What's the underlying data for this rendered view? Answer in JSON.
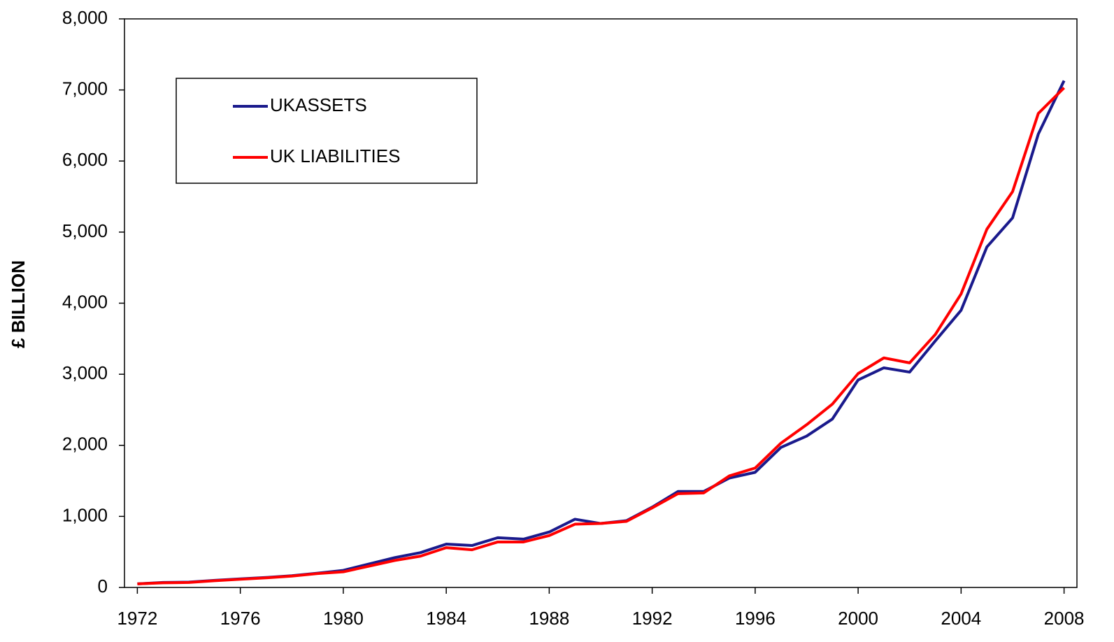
{
  "chart_data": {
    "type": "line",
    "y_label": "£ BILLION",
    "x": [
      1972,
      1973,
      1974,
      1975,
      1976,
      1977,
      1978,
      1979,
      1980,
      1981,
      1982,
      1983,
      1984,
      1985,
      1986,
      1987,
      1988,
      1989,
      1990,
      1991,
      1992,
      1993,
      1994,
      1995,
      1996,
      1997,
      1998,
      1999,
      2000,
      2001,
      2002,
      2003,
      2004,
      2005,
      2006,
      2007,
      2008
    ],
    "series": [
      {
        "name": "UKASSETS",
        "color": "#1a1a8c",
        "values": [
          50,
          70,
          75,
          100,
          120,
          140,
          165,
          200,
          240,
          330,
          420,
          490,
          610,
          590,
          700,
          680,
          780,
          960,
          900,
          940,
          1130,
          1350,
          1350,
          1540,
          1620,
          1970,
          2130,
          2370,
          2920,
          3090,
          3030,
          3470,
          3900,
          4790,
          5200,
          6380,
          7130
        ]
      },
      {
        "name": "UK LIABILITIES",
        "color": "#ff0000",
        "values": [
          50,
          65,
          70,
          95,
          115,
          135,
          160,
          195,
          220,
          300,
          380,
          440,
          560,
          530,
          640,
          640,
          730,
          890,
          900,
          930,
          1120,
          1320,
          1330,
          1570,
          1680,
          2030,
          2290,
          2580,
          3010,
          3230,
          3160,
          3560,
          4130,
          5040,
          5570,
          6670,
          7030
        ]
      }
    ],
    "xlim": [
      1971.5,
      2008.5
    ],
    "xticks": [
      1972,
      1976,
      1980,
      1984,
      1988,
      1992,
      1996,
      2000,
      2004,
      2008
    ],
    "ylim": [
      0,
      8000
    ],
    "yticks": [
      0,
      {
        "value": 1000,
        "label": "1,000"
      },
      {
        "value": 2000,
        "label": "2,000"
      },
      {
        "value": 3000,
        "label": "3,000"
      },
      {
        "value": 4000,
        "label": "4,000"
      },
      {
        "value": 5000,
        "label": "5,000"
      },
      {
        "value": 6000,
        "label": "6,000"
      },
      {
        "value": 7000,
        "label": "7,000"
      },
      {
        "value": 8000,
        "label": "8,000"
      }
    ],
    "grid": false,
    "legend": "upper left"
  }
}
